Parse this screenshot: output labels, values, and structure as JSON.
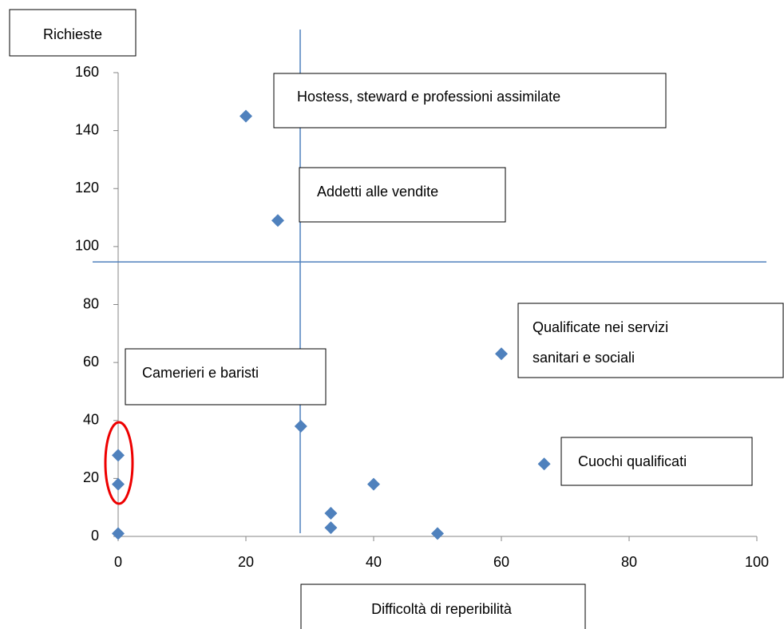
{
  "chart_data": {
    "type": "scatter",
    "y_label": "Richieste",
    "x_label": "Difficoltà di reperibilità",
    "x": [
      20,
      25,
      60,
      66.7,
      28.6,
      0,
      0,
      0,
      33.3,
      33.3,
      40,
      50
    ],
    "values": [
      145,
      109,
      63,
      25,
      38,
      28,
      18,
      1,
      8,
      3,
      18,
      1
    ],
    "color": "#4f81bd",
    "xlim": [
      0,
      100
    ],
    "xticks": [
      0,
      20,
      40,
      60,
      80,
      100
    ],
    "ylim": [
      0,
      160
    ],
    "yticks": [
      0,
      20,
      40,
      60,
      80,
      100,
      120,
      140,
      160
    ],
    "reference_lines": {
      "x": 28.5,
      "y": 94.7,
      "color": "#4f81bd"
    },
    "annotations": [
      [
        "Hostess, steward e professioni assimilate"
      ],
      [
        "Addetti alle vendite"
      ],
      [
        "Qualificate nei servizi",
        "sanitari e sociali"
      ],
      [
        "Camerieri e baristi"
      ],
      [
        "Cuochi qualificati"
      ]
    ]
  }
}
